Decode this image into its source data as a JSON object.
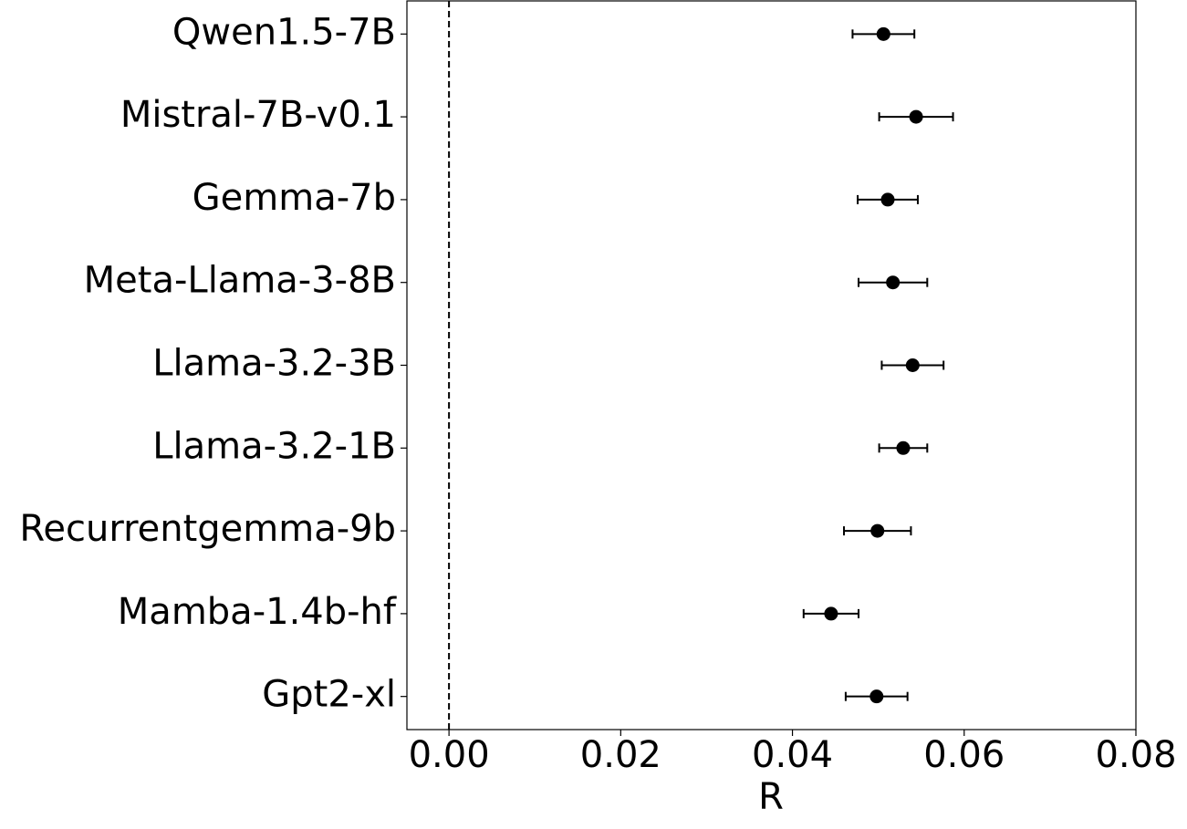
{
  "chart_data": {
    "type": "errorbar",
    "categories": [
      "Qwen1.5-7B",
      "Mistral-7B-v0.1",
      "Gemma-7b",
      "Meta-Llama-3-8B",
      "Llama-3.2-3B",
      "Llama-3.2-1B",
      "Recurrentgemma-9b",
      "Mamba-1.4b-hf",
      "Gpt2-xl"
    ],
    "values": [
      0.0506,
      0.0544,
      0.0511,
      0.0517,
      0.054,
      0.0529,
      0.0499,
      0.0445,
      0.0498
    ],
    "errors": [
      0.0036,
      0.0043,
      0.0035,
      0.004,
      0.0036,
      0.0028,
      0.0039,
      0.0032,
      0.0036
    ],
    "color": "#000000",
    "xlabel": "R",
    "xlim": [
      -0.0049,
      0.08
    ],
    "xticks": [
      {
        "value": 0,
        "label": "0.00"
      },
      {
        "value": 0.02,
        "label": "0.02"
      },
      {
        "value": 0.04,
        "label": "0.04"
      },
      {
        "value": 0.06,
        "label": "0.06"
      },
      {
        "value": 0.08,
        "label": "0.08"
      }
    ],
    "reference_line": 0
  }
}
